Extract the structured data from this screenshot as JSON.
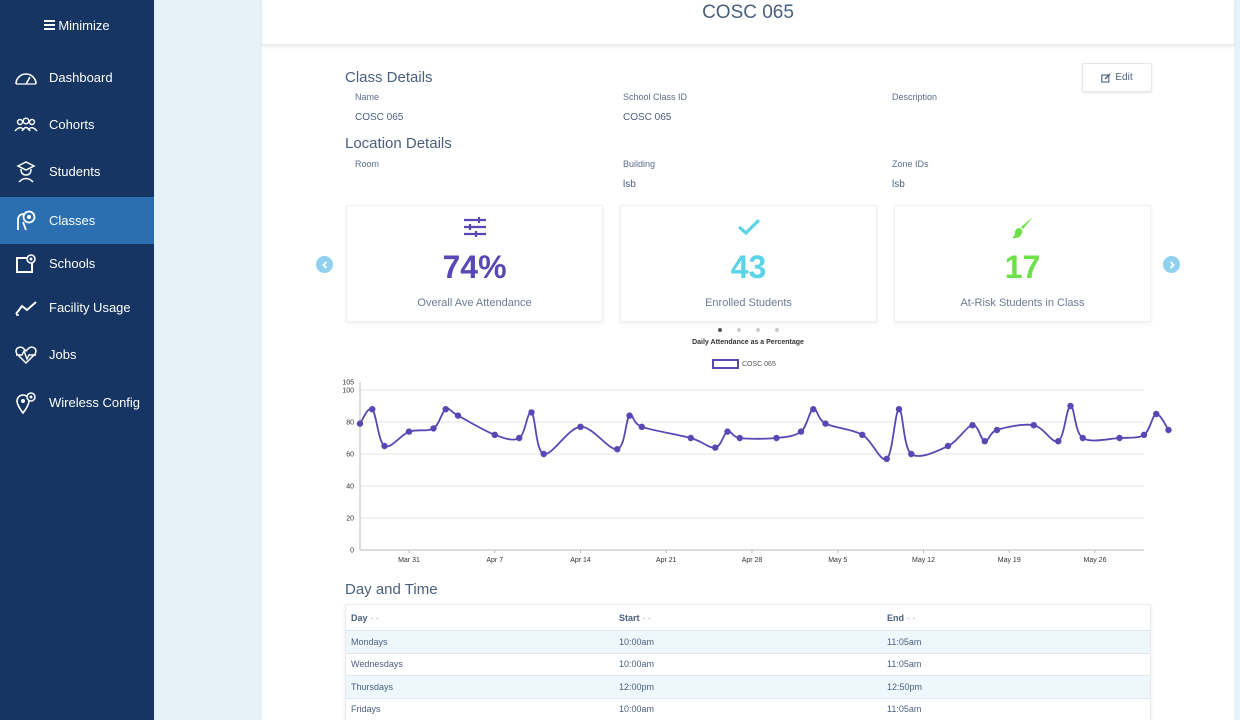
{
  "sidebar": {
    "minimize_label": "Minimize",
    "items": [
      {
        "label": "Dashboard",
        "icon": "dashboard-gauge-icon",
        "active": false
      },
      {
        "label": "Cohorts",
        "icon": "cohorts-people-icon",
        "active": false
      },
      {
        "label": "Students",
        "icon": "student-icon",
        "active": false
      },
      {
        "label": "Classes",
        "icon": "classes-icon",
        "active": true
      },
      {
        "label": "Schools",
        "icon": "schools-icon",
        "active": false
      },
      {
        "label": "Facility Usage",
        "icon": "trend-line-icon",
        "active": false
      },
      {
        "label": "Jobs",
        "icon": "heart-pulse-icon",
        "active": false
      },
      {
        "label": "Wireless Config",
        "icon": "location-pin-icon",
        "active": false
      }
    ],
    "colors": {
      "background": "#163563",
      "active": "#2b6fb0"
    }
  },
  "header": {
    "title": "COSC 065"
  },
  "class_details": {
    "title": "Class Details",
    "edit_label": "Edit",
    "name_label": "Name",
    "name_value": "COSC 065",
    "id_label": "School Class ID",
    "id_value": "COSC 065",
    "description_label": "Description",
    "description_value": ""
  },
  "location_details": {
    "title": "Location Details",
    "room_label": "Room",
    "room_value": "",
    "building_label": "Building",
    "building_value": "lsb",
    "zone_label": "Zone IDs",
    "zone_value": "lsb"
  },
  "stats": [
    {
      "value": "74%",
      "label": "Overall Ave Attendance",
      "icon": "sliders-icon",
      "color": "#5b47b3"
    },
    {
      "value": "43",
      "label": "Enrolled Students",
      "icon": "checkmark-icon",
      "color": "#5ad4e6"
    },
    {
      "value": "17",
      "label": "At-Risk Students in Class",
      "icon": "paintbrush-icon",
      "color": "#6ee04a"
    }
  ],
  "carousel": {
    "dots": 4,
    "active_dot": 0
  },
  "chart_data": {
    "type": "line",
    "title": "Daily Attendance as a Percentage",
    "xlabel": "",
    "ylabel": "",
    "ylim": [
      0,
      105
    ],
    "yticks": [
      0,
      20,
      40,
      60,
      80,
      100,
      105
    ],
    "xlim": [
      "2025-03-27",
      "2025-05-30"
    ],
    "xticks": [
      "Mar 31",
      "Apr 7",
      "Apr 14",
      "Apr 21",
      "Apr 28",
      "May 5",
      "May 12",
      "May 19",
      "May 26"
    ],
    "xtick_dates": [
      "2025-03-31",
      "2025-04-07",
      "2025-04-14",
      "2025-04-21",
      "2025-04-28",
      "2025-05-05",
      "2025-05-12",
      "2025-05-19",
      "2025-05-26"
    ],
    "grid": true,
    "legend": "top-center",
    "series": [
      {
        "name": "COSC 065",
        "color": "#5b47b3",
        "points": [
          [
            "2025-03-27",
            79
          ],
          [
            "2025-03-28",
            88
          ],
          [
            "2025-03-29",
            65
          ],
          [
            "2025-03-31",
            74
          ],
          [
            "2025-04-02",
            76
          ],
          [
            "2025-04-03",
            88
          ],
          [
            "2025-04-04",
            84
          ],
          [
            "2025-04-07",
            72
          ],
          [
            "2025-04-09",
            70
          ],
          [
            "2025-04-10",
            86
          ],
          [
            "2025-04-11",
            60
          ],
          [
            "2025-04-14",
            77
          ],
          [
            "2025-04-17",
            63
          ],
          [
            "2025-04-18",
            84
          ],
          [
            "2025-04-19",
            77
          ],
          [
            "2025-04-23",
            70
          ],
          [
            "2025-04-25",
            64
          ],
          [
            "2025-04-26",
            74
          ],
          [
            "2025-04-27",
            70
          ],
          [
            "2025-04-30",
            70
          ],
          [
            "2025-05-02",
            74
          ],
          [
            "2025-05-03",
            88
          ],
          [
            "2025-05-04",
            79
          ],
          [
            "2025-05-07",
            72
          ],
          [
            "2025-05-09",
            57
          ],
          [
            "2025-05-10",
            88
          ],
          [
            "2025-05-11",
            60
          ],
          [
            "2025-05-14",
            65
          ],
          [
            "2025-05-16",
            78
          ],
          [
            "2025-05-17",
            68
          ],
          [
            "2025-05-18",
            75
          ],
          [
            "2025-05-21",
            78
          ],
          [
            "2025-05-23",
            68
          ],
          [
            "2025-05-24",
            90
          ],
          [
            "2025-05-25",
            70
          ],
          [
            "2025-05-28",
            70
          ],
          [
            "2025-05-30",
            72
          ],
          [
            "2025-05-31",
            85
          ],
          [
            "2025-06-01",
            75
          ]
        ]
      }
    ]
  },
  "schedule": {
    "title": "Day and Time",
    "columns": [
      "Day",
      "Start",
      "End"
    ],
    "sort_indicator": "- -",
    "rows": [
      [
        "Mondays",
        "10:00am",
        "11:05am"
      ],
      [
        "Wednesdays",
        "10:00am",
        "11:05am"
      ],
      [
        "Thursdays",
        "12:00pm",
        "12:50pm"
      ],
      [
        "Fridays",
        "10:00am",
        "11:05am"
      ]
    ]
  }
}
